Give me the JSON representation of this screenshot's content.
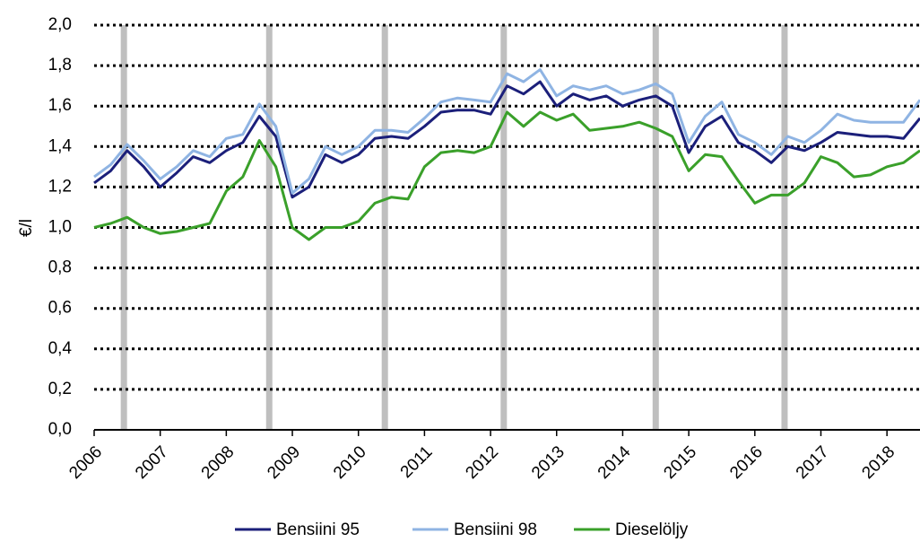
{
  "chart_data": {
    "type": "line",
    "y_label": "€/l",
    "x": [
      2006,
      2006.25,
      2006.5,
      2006.75,
      2007,
      2007.25,
      2007.5,
      2007.75,
      2008,
      2008.25,
      2008.5,
      2008.75,
      2009,
      2009.25,
      2009.5,
      2009.75,
      2010,
      2010.25,
      2010.5,
      2010.75,
      2011,
      2011.25,
      2011.5,
      2011.75,
      2012,
      2012.25,
      2012.5,
      2012.75,
      2013,
      2013.25,
      2013.5,
      2013.75,
      2014,
      2014.25,
      2014.5,
      2014.75,
      2015,
      2015.25,
      2015.5,
      2015.75,
      2016,
      2016.25,
      2016.5,
      2016.75,
      2017,
      2017.25,
      2017.5,
      2017.75,
      2018,
      2018.25,
      2018.5
    ],
    "series": [
      {
        "name": "Bensiini 95",
        "color": "#1b1f7a",
        "values": [
          1.22,
          1.28,
          1.38,
          1.3,
          1.2,
          1.27,
          1.35,
          1.32,
          1.38,
          1.42,
          1.55,
          1.45,
          1.15,
          1.2,
          1.36,
          1.32,
          1.36,
          1.44,
          1.45,
          1.44,
          1.5,
          1.57,
          1.58,
          1.58,
          1.56,
          1.7,
          1.66,
          1.72,
          1.6,
          1.66,
          1.63,
          1.65,
          1.6,
          1.63,
          1.65,
          1.6,
          1.37,
          1.5,
          1.55,
          1.42,
          1.38,
          1.32,
          1.4,
          1.38,
          1.42,
          1.47,
          1.46,
          1.45,
          1.45,
          1.44,
          1.54
        ]
      },
      {
        "name": "Bensiini 98",
        "color": "#8fb4e3",
        "values": [
          1.25,
          1.31,
          1.41,
          1.33,
          1.24,
          1.3,
          1.38,
          1.35,
          1.44,
          1.46,
          1.61,
          1.5,
          1.17,
          1.24,
          1.4,
          1.36,
          1.4,
          1.48,
          1.48,
          1.47,
          1.54,
          1.62,
          1.64,
          1.63,
          1.62,
          1.76,
          1.72,
          1.78,
          1.65,
          1.7,
          1.68,
          1.7,
          1.66,
          1.68,
          1.71,
          1.66,
          1.42,
          1.55,
          1.62,
          1.46,
          1.42,
          1.36,
          1.45,
          1.42,
          1.48,
          1.56,
          1.53,
          1.52,
          1.52,
          1.52,
          1.63
        ]
      },
      {
        "name": "Dieselöljy",
        "color": "#3aa02a",
        "values": [
          1.0,
          1.02,
          1.05,
          1.0,
          0.97,
          0.98,
          1.0,
          1.02,
          1.18,
          1.25,
          1.43,
          1.3,
          1.0,
          0.94,
          1.0,
          1.0,
          1.03,
          1.12,
          1.15,
          1.14,
          1.3,
          1.37,
          1.38,
          1.37,
          1.4,
          1.57,
          1.5,
          1.57,
          1.53,
          1.56,
          1.48,
          1.49,
          1.5,
          1.52,
          1.49,
          1.45,
          1.28,
          1.36,
          1.35,
          1.23,
          1.12,
          1.16,
          1.16,
          1.22,
          1.35,
          1.32,
          1.25,
          1.26,
          1.3,
          1.32,
          1.38
        ]
      }
    ],
    "markers": [
      2006.45,
      2008.65,
      2010.4,
      2012.2,
      2014.5,
      2016.45
    ],
    "xlim": [
      2006,
      2018.5
    ],
    "xticks": [
      2006,
      2007,
      2008,
      2009,
      2010,
      2011,
      2012,
      2013,
      2014,
      2015,
      2016,
      2017,
      2018
    ],
    "ylim": [
      0,
      2
    ],
    "yticks": [
      {
        "value": 0,
        "label": "0,0"
      },
      {
        "value": 0.2,
        "label": "0,2"
      },
      {
        "value": 0.4,
        "label": "0,4"
      },
      {
        "value": 0.6,
        "label": "0,6"
      },
      {
        "value": 0.8,
        "label": "0,8"
      },
      {
        "value": 1,
        "label": "1,0"
      },
      {
        "value": 1.2,
        "label": "1,2"
      },
      {
        "value": 1.4,
        "label": "1,4"
      },
      {
        "value": 1.6,
        "label": "1,6"
      },
      {
        "value": 1.8,
        "label": "1,8"
      },
      {
        "value": 2,
        "label": "2,0"
      }
    ],
    "grid": true,
    "legend": "bottom"
  }
}
